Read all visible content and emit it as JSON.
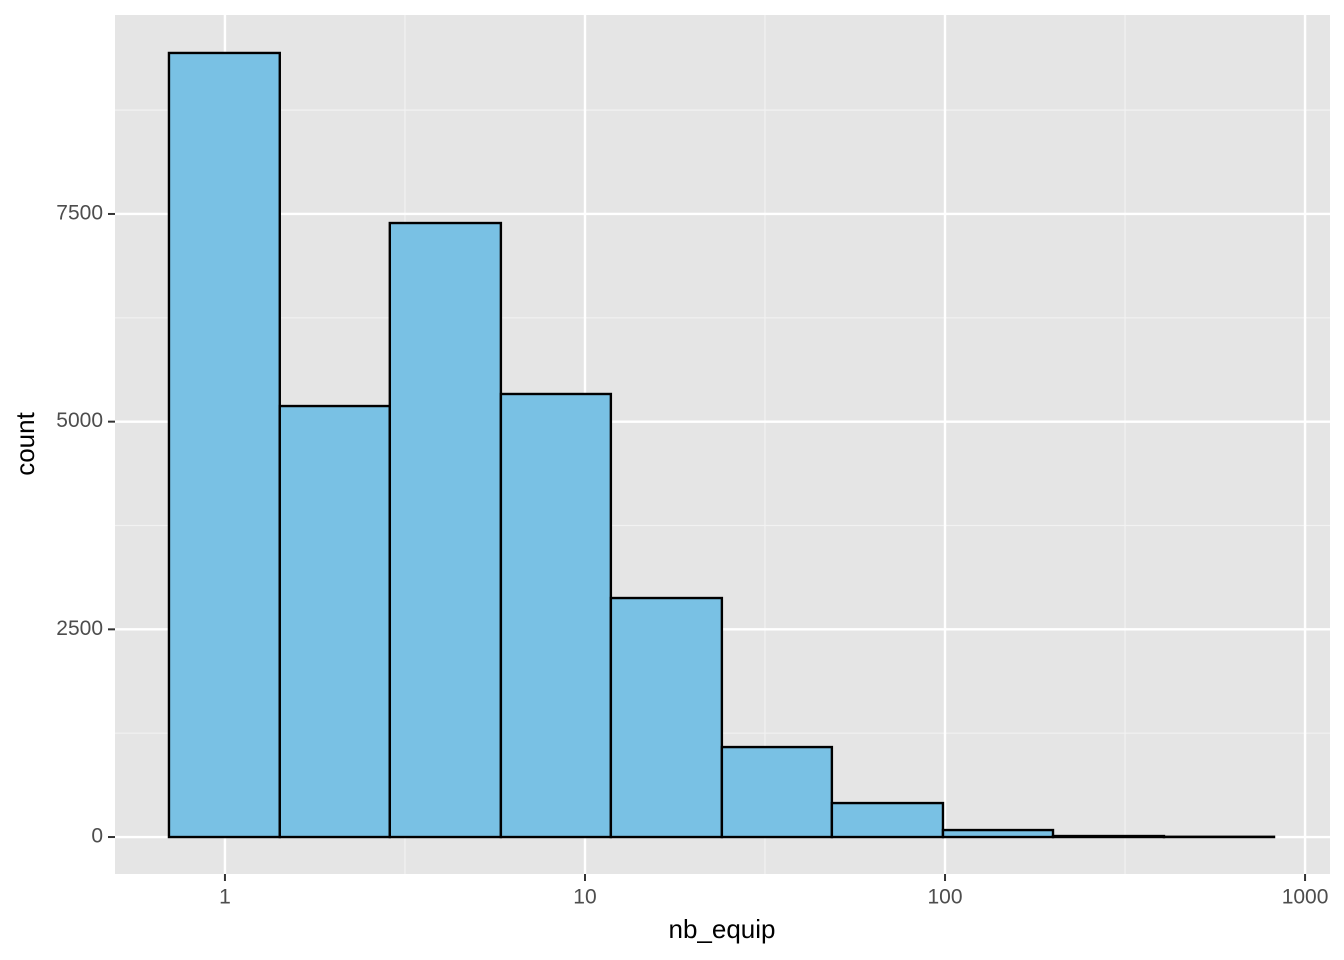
{
  "chart_data": {
    "type": "histogram",
    "x_label": "nb_equip",
    "y_label": "count",
    "bins": [
      0.699,
      1.42,
      2.87,
      5.84,
      11.8,
      24.0,
      48.5,
      98.7,
      199.5,
      405.6,
      820
    ],
    "values": [
      9438,
      5188,
      7391,
      5333,
      2877,
      1083,
      409,
      84,
      12,
      3
    ],
    "color": "#79c1e4",
    "edge_color": "#000000",
    "x_scale": "log",
    "xlim": [
      0.495,
      1173
    ],
    "xticks": [
      1,
      10,
      100,
      1000
    ],
    "minor_xticks": [
      3.162,
      31.62,
      316.2
    ],
    "ylim": [
      -445,
      9895
    ],
    "yticks": [
      0,
      2500,
      5000,
      7500
    ],
    "minor_yticks": [
      1250,
      3750,
      6250,
      8750
    ],
    "grid": true
  }
}
